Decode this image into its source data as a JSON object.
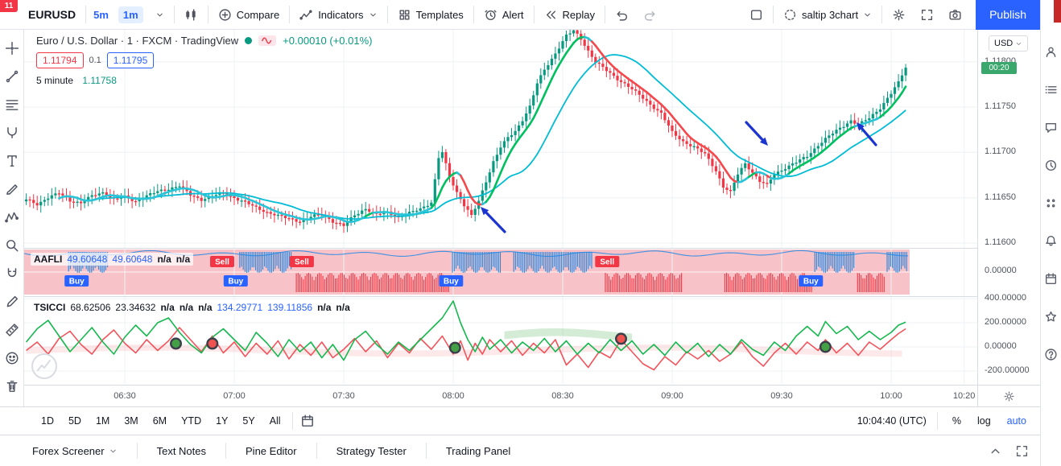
{
  "colors": {
    "accent": "#2962ff",
    "red": "#f23645",
    "green": "#089981",
    "candle_up": "#089981",
    "candle_down": "#f23645",
    "ma_slow": "#00bcd4",
    "ma_up": "#00c060",
    "ma_down": "#f5484d",
    "ma_flat": "#29c4d8",
    "arrow": "#1d35cf",
    "panel_pink": "#f7c3c8",
    "blue_bars": "#1e88e5",
    "countdown_bg": "#3aa76d",
    "tsi_green": "#16b84f",
    "tsi_red": "#f2545b",
    "edge_strip": "#c62828",
    "grid": "#eef1f6",
    "separator": "#d8dbe2"
  },
  "topbar": {
    "notification_badge": "11",
    "symbol": "EURUSD",
    "interval_5m": "5m",
    "interval_1m": "1m",
    "compare_label": "Compare",
    "indicators_label": "Indicators",
    "templates_label": "Templates",
    "alert_label": "Alert",
    "replay_label": "Replay",
    "layout_name": "saltip 3chart",
    "publish_label": "Publish"
  },
  "legend": {
    "title": "Euro / U.S. Dollar · 1 · FXCM · TradingView",
    "change": "+0.00010 (+0.01%)",
    "bid": "1.11794",
    "spread": "0.1",
    "ask": "1.11795",
    "ma_label": "5 minute",
    "ma_value": "1.11758"
  },
  "price_axis": {
    "currency": "USD"
  },
  "left_toolbar": {
    "icons": [
      "crosshair",
      "trend-line",
      "fib-retracement",
      "pitchfork",
      "text-tool",
      "brush",
      "xabcd-pattern",
      "zoom",
      "magnet",
      "edit",
      "ruler",
      "emoji",
      "trash"
    ]
  },
  "right_sidebar": {
    "icons": [
      "person",
      "list",
      "chat",
      "clock",
      "grid-dots",
      "bell",
      "calendar",
      "star",
      "question"
    ]
  },
  "bottom_toolbar": {
    "ranges": [
      "1D",
      "5D",
      "1M",
      "3M",
      "6M",
      "YTD",
      "1Y",
      "5Y",
      "All"
    ],
    "clock": "10:04:40 (UTC)",
    "percent_label": "%",
    "log_label": "log",
    "auto_label": "auto"
  },
  "bottom_tabs": {
    "tabs": [
      {
        "label": "Forex Screener",
        "dropdown": true
      },
      {
        "label": "Text Notes",
        "dropdown": false
      },
      {
        "label": "Pine Editor",
        "dropdown": false
      },
      {
        "label": "Strategy Tester",
        "dropdown": false
      },
      {
        "label": "Trading Panel",
        "dropdown": false
      }
    ]
  },
  "chart_data": {
    "type": "candlestick",
    "symbol_description": "Euro / U.S. Dollar · 1 · FXCM · TradingView",
    "interval_minutes": 1,
    "x_axis": {
      "labels": [
        "06:30",
        "07:00",
        "07:30",
        "08:00",
        "08:30",
        "09:00",
        "09:30",
        "10:00",
        "10:20"
      ],
      "label_minutes": [
        30,
        60,
        90,
        120,
        150,
        180,
        210,
        240,
        260
      ]
    },
    "price_panel": {
      "ytick_labels": [
        "1.11800",
        "1.11750",
        "1.11700",
        "1.11650",
        "1.11600"
      ],
      "ytick_values": [
        1.118,
        1.1175,
        1.117,
        1.1165,
        1.116
      ],
      "current_price": 1.11795,
      "countdown": "00:20",
      "close_anchors": [
        [
          3,
          1.11648
        ],
        [
          6,
          1.11643
        ],
        [
          9,
          1.1165
        ],
        [
          12,
          1.11655
        ],
        [
          15,
          1.11647
        ],
        [
          18,
          1.11644
        ],
        [
          21,
          1.11652
        ],
        [
          24,
          1.11656
        ],
        [
          27,
          1.11648
        ],
        [
          30,
          1.11651
        ],
        [
          33,
          1.11646
        ],
        [
          36,
          1.11652
        ],
        [
          39,
          1.11657
        ],
        [
          42,
          1.1166
        ],
        [
          45,
          1.11663
        ],
        [
          48,
          1.11653
        ],
        [
          51,
          1.11648
        ],
        [
          54,
          1.11652
        ],
        [
          57,
          1.11655
        ],
        [
          60,
          1.1165
        ],
        [
          63,
          1.11645
        ],
        [
          66,
          1.11639
        ],
        [
          69,
          1.11634
        ],
        [
          72,
          1.1163
        ],
        [
          75,
          1.11627
        ],
        [
          78,
          1.11624
        ],
        [
          81,
          1.11629
        ],
        [
          84,
          1.11632
        ],
        [
          87,
          1.11624
        ],
        [
          90,
          1.11619
        ],
        [
          93,
          1.11631
        ],
        [
          96,
          1.11638
        ],
        [
          99,
          1.11631
        ],
        [
          102,
          1.11634
        ],
        [
          105,
          1.11629
        ],
        [
          108,
          1.11633
        ],
        [
          111,
          1.11638
        ],
        [
          114,
          1.11645
        ],
        [
          116,
          1.11694
        ],
        [
          117,
          1.117
        ],
        [
          119,
          1.11673
        ],
        [
          121,
          1.11656
        ],
        [
          123,
          1.11642
        ],
        [
          125,
          1.1163
        ],
        [
          127,
          1.11646
        ],
        [
          129,
          1.11668
        ],
        [
          131,
          1.1169
        ],
        [
          133,
          1.11706
        ],
        [
          135,
          1.11716
        ],
        [
          137,
          1.11723
        ],
        [
          139,
          1.11736
        ],
        [
          141,
          1.11751
        ],
        [
          143,
          1.11776
        ],
        [
          145,
          1.11791
        ],
        [
          147,
          1.11803
        ],
        [
          149,
          1.11816
        ],
        [
          151,
          1.11829
        ],
        [
          153,
          1.11834
        ],
        [
          155,
          1.11825
        ],
        [
          157,
          1.11812
        ],
        [
          159,
          1.118
        ],
        [
          162,
          1.1179
        ],
        [
          165,
          1.11781
        ],
        [
          168,
          1.11773
        ],
        [
          171,
          1.11763
        ],
        [
          174,
          1.11753
        ],
        [
          177,
          1.11743
        ],
        [
          180,
          1.11722
        ],
        [
          183,
          1.11712
        ],
        [
          186,
          1.11706
        ],
        [
          189,
          1.11698
        ],
        [
          192,
          1.1168
        ],
        [
          194,
          1.11662
        ],
        [
          196,
          1.11656
        ],
        [
          198,
          1.11676
        ],
        [
          200,
          1.11688
        ],
        [
          202,
          1.11678
        ],
        [
          204,
          1.11668
        ],
        [
          206,
          1.11664
        ],
        [
          208,
          1.11676
        ],
        [
          211,
          1.11683
        ],
        [
          214,
          1.11689
        ],
        [
          217,
          1.11696
        ],
        [
          220,
          1.11708
        ],
        [
          223,
          1.11718
        ],
        [
          226,
          1.11727
        ],
        [
          229,
          1.11735
        ],
        [
          231,
          1.1173
        ],
        [
          234,
          1.11738
        ],
        [
          237,
          1.11749
        ],
        [
          240,
          1.11765
        ],
        [
          242,
          1.11777
        ],
        [
          244,
          1.11794
        ]
      ],
      "ma_fast_period": 7,
      "ma_slow_period": 21,
      "arrows": [
        {
          "from": [
            627,
            288
          ],
          "to": [
            597,
            257
          ]
        },
        {
          "from": [
            927,
            152
          ],
          "to": [
            954,
            181
          ]
        },
        {
          "from": [
            1088,
            180
          ],
          "to": [
            1064,
            152
          ]
        }
      ]
    },
    "aafli_panel": {
      "title_parts": [
        [
          "AAFLI",
          "#131722"
        ],
        [
          "49.60648",
          "#2962ff"
        ],
        [
          "49.60648",
          "#2962ff"
        ],
        [
          "n/a",
          "#131722"
        ],
        [
          "n/a",
          "#131722"
        ]
      ],
      "ytick": "0.00000",
      "buy_label": "Buy",
      "sell_label": "Sell",
      "buy_signals_min": [
        16.8,
        60.4,
        119.4,
        218
      ],
      "sell_signals_min": [
        56.7,
        78.5,
        162.2
      ],
      "blue_segments_min": [
        [
          14.6,
          25.6
        ],
        [
          61.5,
          75.7
        ],
        [
          119.8,
          133
        ],
        [
          136.6,
          158
        ],
        [
          219.1,
          230.1
        ],
        [
          238.9,
          244.6
        ]
      ],
      "red_segments_min": [
        [
          77,
          118.9
        ],
        [
          161.7,
          182.9
        ],
        [
          194.4,
          218.2
        ],
        [
          230.8,
          238.5
        ]
      ]
    },
    "tsicci_panel": {
      "title_parts": [
        [
          "TSICCI",
          "#131722"
        ],
        [
          "68.62506",
          "#131722"
        ],
        [
          "23.34632",
          "#131722"
        ],
        [
          "n/a",
          "#131722"
        ],
        [
          "n/a",
          "#131722"
        ],
        [
          "n/a",
          "#131722"
        ],
        [
          "134.29771",
          "#2962ff"
        ],
        [
          "139.11856",
          "#2962ff"
        ],
        [
          "n/a",
          "#131722"
        ],
        [
          "n/a",
          "#131722"
        ]
      ],
      "ytick_labels": [
        "400.00000",
        "200.00000",
        "0.00000",
        "-200.00000"
      ],
      "ytick_values": [
        400,
        200,
        0,
        -200
      ],
      "green_line": [
        [
          3,
          40
        ],
        [
          6,
          150
        ],
        [
          9,
          220
        ],
        [
          12,
          90
        ],
        [
          15,
          -40
        ],
        [
          18,
          60
        ],
        [
          21,
          160
        ],
        [
          24,
          40
        ],
        [
          27,
          -60
        ],
        [
          30,
          80
        ],
        [
          33,
          180
        ],
        [
          36,
          90
        ],
        [
          39,
          200
        ],
        [
          42,
          240
        ],
        [
          45,
          120
        ],
        [
          48,
          20
        ],
        [
          51,
          -50
        ],
        [
          54,
          80
        ],
        [
          57,
          150
        ],
        [
          60,
          60
        ],
        [
          63,
          -30
        ],
        [
          66,
          120
        ],
        [
          69,
          30
        ],
        [
          72,
          -80
        ],
        [
          75,
          60
        ],
        [
          78,
          -40
        ],
        [
          81,
          40
        ],
        [
          84,
          -90
        ],
        [
          87,
          20
        ],
        [
          90,
          -110
        ],
        [
          93,
          60
        ],
        [
          96,
          130
        ],
        [
          99,
          20
        ],
        [
          102,
          -60
        ],
        [
          105,
          40
        ],
        [
          108,
          -30
        ],
        [
          111,
          60
        ],
        [
          114,
          150
        ],
        [
          117,
          240
        ],
        [
          120,
          380
        ],
        [
          122,
          200
        ],
        [
          124,
          60
        ],
        [
          126,
          -40
        ],
        [
          128,
          80
        ],
        [
          130,
          -20
        ],
        [
          133,
          60
        ],
        [
          136,
          -50
        ],
        [
          139,
          40
        ],
        [
          142,
          -30
        ],
        [
          145,
          70
        ],
        [
          148,
          -40
        ],
        [
          151,
          50
        ],
        [
          154,
          -60
        ],
        [
          157,
          30
        ],
        [
          160,
          -50
        ],
        [
          163,
          60
        ],
        [
          166,
          -30
        ],
        [
          169,
          50
        ],
        [
          172,
          -60
        ],
        [
          175,
          20
        ],
        [
          178,
          -70
        ],
        [
          181,
          40
        ],
        [
          184,
          -50
        ],
        [
          187,
          30
        ],
        [
          190,
          -80
        ],
        [
          193,
          20
        ],
        [
          196,
          -60
        ],
        [
          199,
          60
        ],
        [
          202,
          -20
        ],
        [
          205,
          -70
        ],
        [
          208,
          40
        ],
        [
          211,
          -30
        ],
        [
          214,
          90
        ],
        [
          217,
          170
        ],
        [
          220,
          90
        ],
        [
          222,
          210
        ],
        [
          225,
          110
        ],
        [
          228,
          170
        ],
        [
          231,
          60
        ],
        [
          234,
          130
        ],
        [
          237,
          60
        ],
        [
          240,
          120
        ],
        [
          242,
          180
        ],
        [
          244,
          205
        ]
      ],
      "red_line": [
        [
          3,
          -30
        ],
        [
          6,
          40
        ],
        [
          9,
          -60
        ],
        [
          12,
          70
        ],
        [
          15,
          130
        ],
        [
          18,
          20
        ],
        [
          21,
          -60
        ],
        [
          24,
          60
        ],
        [
          27,
          140
        ],
        [
          30,
          30
        ],
        [
          33,
          -50
        ],
        [
          36,
          60
        ],
        [
          39,
          -30
        ],
        [
          42,
          50
        ],
        [
          45,
          160
        ],
        [
          48,
          60
        ],
        [
          51,
          -40
        ],
        [
          54,
          90
        ],
        [
          57,
          -50
        ],
        [
          60,
          40
        ],
        [
          63,
          -80
        ],
        [
          66,
          30
        ],
        [
          69,
          -60
        ],
        [
          72,
          50
        ],
        [
          75,
          -100
        ],
        [
          78,
          20
        ],
        [
          81,
          -70
        ],
        [
          84,
          40
        ],
        [
          87,
          -90
        ],
        [
          90,
          -20
        ],
        [
          93,
          70
        ],
        [
          96,
          -40
        ],
        [
          99,
          50
        ],
        [
          102,
          -90
        ],
        [
          105,
          30
        ],
        [
          108,
          -50
        ],
        [
          111,
          70
        ],
        [
          114,
          -20
        ],
        [
          117,
          90
        ],
        [
          120,
          -60
        ],
        [
          122,
          50
        ],
        [
          124,
          -110
        ],
        [
          126,
          30
        ],
        [
          128,
          -60
        ],
        [
          130,
          60
        ],
        [
          133,
          -40
        ],
        [
          136,
          50
        ],
        [
          139,
          -70
        ],
        [
          142,
          30
        ],
        [
          145,
          -50
        ],
        [
          148,
          60
        ],
        [
          151,
          -150
        ],
        [
          154,
          -60
        ],
        [
          157,
          -170
        ],
        [
          160,
          -40
        ],
        [
          163,
          -90
        ],
        [
          166,
          60
        ],
        [
          169,
          -40
        ],
        [
          172,
          -140
        ],
        [
          175,
          -190
        ],
        [
          178,
          -80
        ],
        [
          181,
          -150
        ],
        [
          184,
          -40
        ],
        [
          187,
          -100
        ],
        [
          190,
          -30
        ],
        [
          193,
          -120
        ],
        [
          196,
          -60
        ],
        [
          199,
          40
        ],
        [
          202,
          -80
        ],
        [
          205,
          -160
        ],
        [
          208,
          -50
        ],
        [
          211,
          30
        ],
        [
          214,
          -60
        ],
        [
          217,
          40
        ],
        [
          220,
          -30
        ],
        [
          222,
          60
        ],
        [
          225,
          -50
        ],
        [
          228,
          30
        ],
        [
          231,
          -70
        ],
        [
          234,
          40
        ],
        [
          237,
          -20
        ],
        [
          240,
          60
        ],
        [
          242,
          110
        ],
        [
          244,
          150
        ]
      ],
      "markers": [
        [
          44,
          27,
          "green"
        ],
        [
          54,
          27,
          "red"
        ],
        [
          120.5,
          -7,
          "green"
        ],
        [
          166,
          67,
          "red"
        ],
        [
          222,
          0,
          "green"
        ]
      ],
      "ribbons": [
        {
          "t0": 3,
          "t1": 244,
          "color": "pink"
        },
        {
          "t0": 134,
          "t1": 172,
          "color": "green"
        }
      ]
    }
  }
}
